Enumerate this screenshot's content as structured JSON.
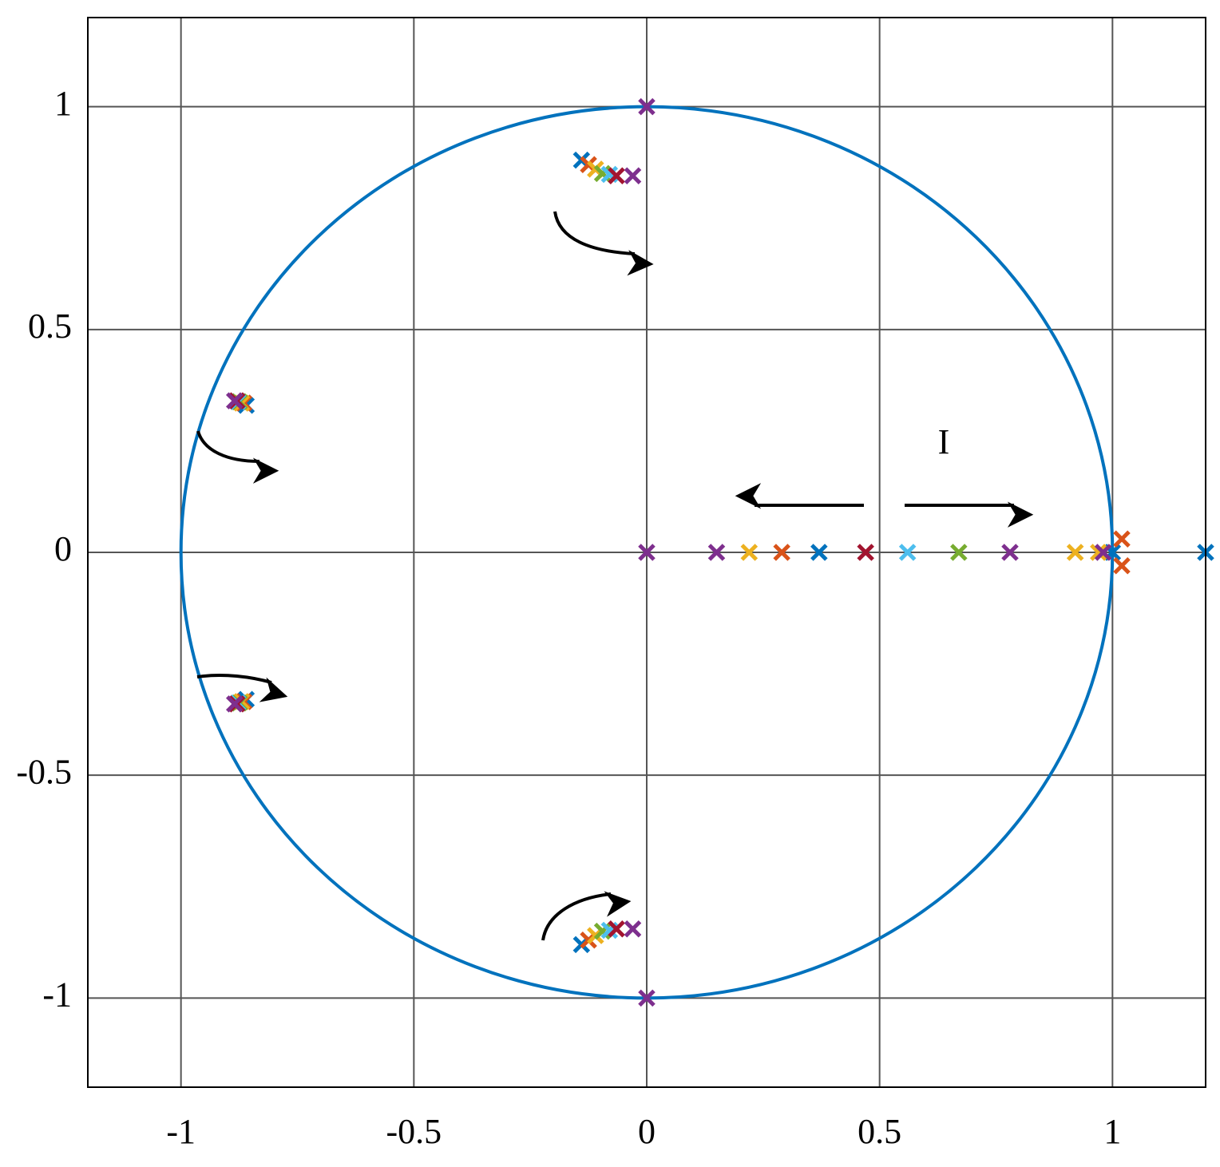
{
  "chart_data": {
    "type": "scatter",
    "marker": "x",
    "grid": true,
    "xlim": [
      -1.2,
      1.2
    ],
    "ylim": [
      -1.2,
      1.2
    ],
    "xticks": [
      -1,
      -0.5,
      0,
      0.5,
      1
    ],
    "yticks": [
      -1,
      -0.5,
      0,
      0.5,
      1
    ],
    "unit_circle": {
      "color": "#0072BD"
    },
    "annotation": "I",
    "series": [
      {
        "color": "#0072BD",
        "x": [
          -0.14,
          -0.14,
          -0.86,
          -0.86,
          0.37,
          1.0,
          1.2
        ],
        "values": [
          0.88,
          -0.88,
          0.33,
          -0.33,
          0,
          0,
          0
        ]
      },
      {
        "color": "#D95319",
        "x": [
          -0.125,
          -0.125,
          -0.865,
          -0.865,
          0.29,
          1.02,
          1.02
        ],
        "values": [
          0.87,
          -0.87,
          0.335,
          -0.335,
          0,
          0.03,
          -0.03
        ]
      },
      {
        "color": "#EDB120",
        "x": [
          -0.11,
          -0.11,
          -0.87,
          -0.87,
          0.22,
          0.92,
          0.97
        ],
        "values": [
          0.86,
          -0.86,
          0.335,
          -0.335,
          0,
          0,
          0
        ]
      },
      {
        "color": "#77AC30",
        "x": [
          -0.095,
          -0.095,
          -0.875,
          -0.875,
          0.67
        ],
        "values": [
          0.85,
          -0.85,
          0.338,
          -0.338,
          0
        ]
      },
      {
        "color": "#4DBEEE",
        "x": [
          -0.08,
          -0.08,
          -0.878,
          -0.878,
          0.56
        ],
        "values": [
          0.848,
          -0.848,
          0.338,
          -0.338,
          0
        ]
      },
      {
        "color": "#A2142F",
        "x": [
          -0.065,
          -0.065,
          -0.88,
          -0.88,
          0.47
        ],
        "values": [
          0.845,
          -0.845,
          0.34,
          -0.34,
          0
        ]
      },
      {
        "color": "#7E2F8E",
        "x": [
          -0.03,
          -0.03,
          -0.885,
          -0.885,
          0,
          0,
          0,
          0.15,
          0.78,
          0.98
        ],
        "values": [
          0.845,
          -0.845,
          0.34,
          -0.34,
          0,
          1,
          -1,
          0,
          0,
          0
        ]
      }
    ]
  }
}
